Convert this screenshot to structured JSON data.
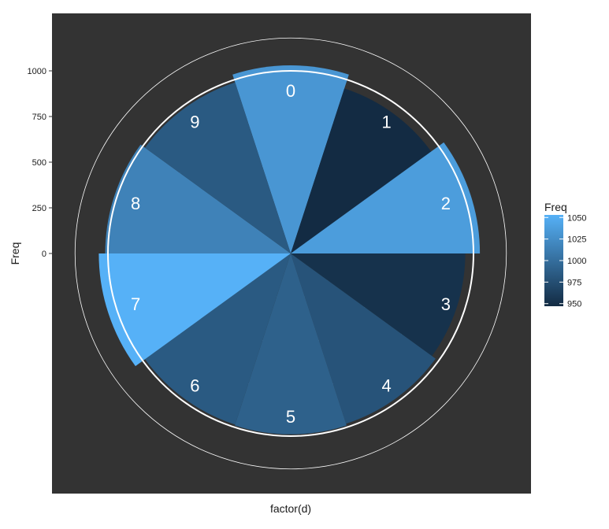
{
  "chart_data": {
    "type": "bar",
    "coord": "polar",
    "categories": [
      "0",
      "1",
      "2",
      "3",
      "4",
      "5",
      "6",
      "7",
      "8",
      "9"
    ],
    "values": [
      1030,
      950,
      1035,
      955,
      980,
      990,
      985,
      1050,
      1015,
      985
    ],
    "xlabel": "factor(d)",
    "ylabel": "Freq",
    "y_ticks": [
      "0",
      "250",
      "500",
      "750",
      "1000"
    ],
    "y_tick_values": [
      0,
      250,
      500,
      750,
      1000
    ],
    "legend": {
      "title": "Freq",
      "labels": [
        "1050",
        "1025",
        "1000",
        "975",
        "950"
      ],
      "values": [
        1050,
        1025,
        1000,
        975,
        950
      ],
      "color_low": "#132b43",
      "color_high": "#56b1f7",
      "placement": "right"
    },
    "panel_background": "#333333",
    "grid_color": "#ffffff",
    "ylim": [
      0,
      1250
    ]
  }
}
